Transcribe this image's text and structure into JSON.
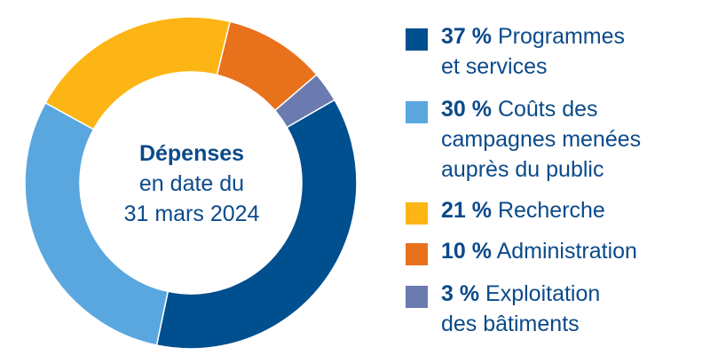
{
  "chart_data": {
    "type": "pie",
    "variant": "donut",
    "center_label": {
      "title": "Dépenses",
      "line1": "en date du",
      "line2": "31 mars 2024"
    },
    "categories": [
      "Programmes et services",
      "Coûts des campagnes menées auprès du public",
      "Recherche",
      "Administration",
      "Exploitation des bâtiments"
    ],
    "values": [
      37,
      30,
      21,
      10,
      3
    ],
    "colors": [
      "#004f8f",
      "#5aa7df",
      "#fdb515",
      "#e8711c",
      "#6b7bb0"
    ],
    "legend_placement": "right",
    "legend": [
      {
        "pct": "37 %",
        "line1": "Programmes",
        "line2": "et services",
        "line3": "",
        "color": "#004f8f",
        "icon": "square"
      },
      {
        "pct": "30 %",
        "line1": "Coûts des",
        "line2": "campagnes menées",
        "line3": "auprès du public",
        "color": "#5aa7df",
        "icon": "square"
      },
      {
        "pct": "21 %",
        "line1": "Recherche",
        "line2": "",
        "line3": "",
        "color": "#fdb515",
        "icon": "square"
      },
      {
        "pct": "10 %",
        "line1": "Administration",
        "line2": "",
        "line3": "",
        "color": "#e8711c",
        "icon": "square"
      },
      {
        "pct": "3 %",
        "line1": "Exploitation",
        "line2": "des bâtiments",
        "line3": "",
        "color": "#6b7bb0",
        "icon": "square"
      }
    ]
  }
}
